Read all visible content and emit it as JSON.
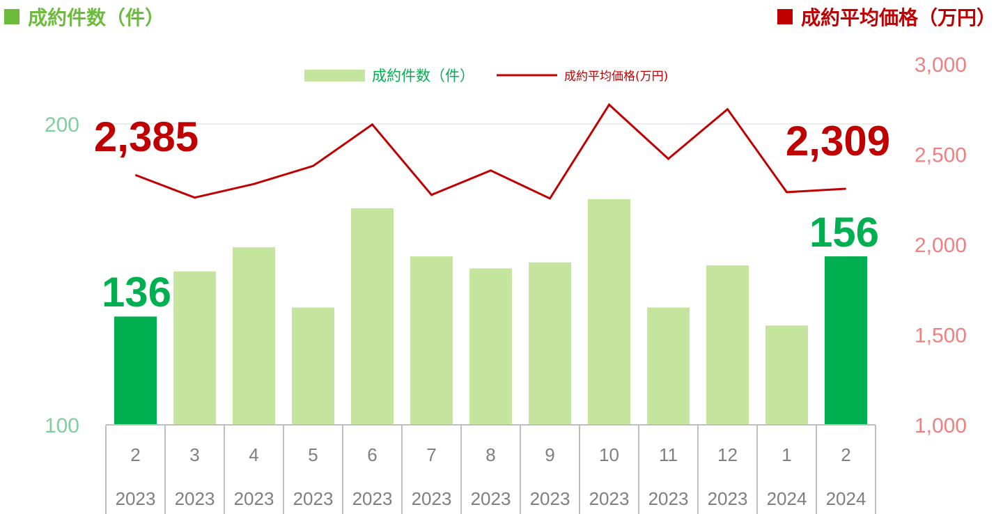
{
  "header": {
    "left_title": "成約件数（件）",
    "right_title": "成約平均価格（万円）"
  },
  "legend": {
    "bar_label": "成約件数（件）",
    "line_label": "成約平均価格(万円)"
  },
  "colors": {
    "bar": "#c5e49e",
    "bar_highlight": "#00b050",
    "line": "#c00000",
    "left_axis_text": "#7fcf9a",
    "right_axis_text": "#f08080",
    "header_left": "#6cbb3c",
    "header_right": "#c00000",
    "category_text": "#7f7f7f"
  },
  "chart_data": {
    "type": "bar",
    "categories": [
      {
        "month": "2",
        "year": "2023"
      },
      {
        "month": "3",
        "year": "2023"
      },
      {
        "month": "4",
        "year": "2023"
      },
      {
        "month": "5",
        "year": "2023"
      },
      {
        "month": "6",
        "year": "2023"
      },
      {
        "month": "7",
        "year": "2023"
      },
      {
        "month": "8",
        "year": "2023"
      },
      {
        "month": "9",
        "year": "2023"
      },
      {
        "month": "10",
        "year": "2023"
      },
      {
        "month": "11",
        "year": "2023"
      },
      {
        "month": "12",
        "year": "2023"
      },
      {
        "month": "1",
        "year": "2024"
      },
      {
        "month": "2",
        "year": "2024"
      }
    ],
    "series": [
      {
        "name": "成約件数（件）",
        "type": "bar",
        "axis": "left",
        "values": [
          136,
          151,
          159,
          139,
          172,
          156,
          152,
          154,
          175,
          139,
          153,
          133,
          156
        ],
        "highlight_indices": [
          0,
          12
        ]
      },
      {
        "name": "成約平均価格(万円)",
        "type": "line",
        "axis": "right",
        "values": [
          2385,
          2260,
          2335,
          2435,
          2665,
          2275,
          2410,
          2255,
          2775,
          2475,
          2750,
          2290,
          2309
        ]
      }
    ],
    "left_axis": {
      "min": 100,
      "max": 200,
      "ticks": [
        100,
        200
      ]
    },
    "right_axis": {
      "min": 1000,
      "max": 3000,
      "ticks": [
        1000,
        1500,
        2000,
        2500,
        3000
      ]
    },
    "callouts": [
      {
        "series": 1,
        "index": 0,
        "text": "2,385"
      },
      {
        "series": 1,
        "index": 12,
        "text": "2,309"
      },
      {
        "series": 0,
        "index": 0,
        "text": "136"
      },
      {
        "series": 0,
        "index": 12,
        "text": "156"
      }
    ],
    "gridlines": "left-axis max only",
    "legend_position": "top-center"
  }
}
